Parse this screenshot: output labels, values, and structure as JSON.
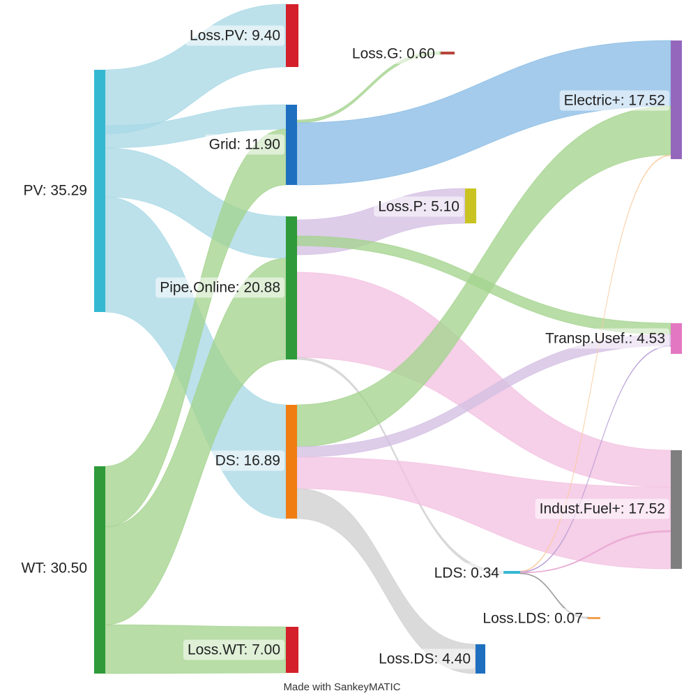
{
  "nodes": [
    {
      "id": "pv",
      "label": "PV: 35.29",
      "color": "#34b8d2"
    },
    {
      "id": "wt",
      "label": "WT: 30.50",
      "color": "#2e9a3a"
    },
    {
      "id": "losspv",
      "label": "Loss.PV: 9.40",
      "color": "#d3202a"
    },
    {
      "id": "grid",
      "label": "Grid: 11.90",
      "color": "#1f6fc0"
    },
    {
      "id": "pipe",
      "label": "Pipe.Online: 20.88",
      "color": "#2e9a3a"
    },
    {
      "id": "ds",
      "label": "DS: 16.89",
      "color": "#f07d12"
    },
    {
      "id": "losswt",
      "label": "Loss.WT: 7.00",
      "color": "#d3202a"
    },
    {
      "id": "lossg",
      "label": "Loss.G: 0.60",
      "color": "#b8453c"
    },
    {
      "id": "lossp",
      "label": "Loss.P: 5.10",
      "color": "#c9c421"
    },
    {
      "id": "lds",
      "label": "LDS: 0.34",
      "color": "#34b8d2"
    },
    {
      "id": "losslds",
      "label": "Loss.LDS: 0.07",
      "color": "#f0a050"
    },
    {
      "id": "lossds",
      "label": "Loss.DS: 4.40",
      "color": "#1f6fc0"
    },
    {
      "id": "electric",
      "label": "Electric+: 17.52",
      "color": "#9467bd"
    },
    {
      "id": "transp",
      "label": "Transp.Usef.: 4.53",
      "color": "#e377c2"
    },
    {
      "id": "indust",
      "label": "Indust.Fuel+: 17.52",
      "color": "#7f7f7f"
    }
  ],
  "flows": [
    {
      "from": "PV",
      "to": "Loss.PV",
      "value": 9.4,
      "color": "#a9d9e6"
    },
    {
      "from": "PV",
      "to": "Grid",
      "color": "#a9d9e6"
    },
    {
      "from": "PV",
      "to": "Pipe.Online",
      "color": "#a9d9e6"
    },
    {
      "from": "PV",
      "to": "DS",
      "color": "#a9d9e6"
    },
    {
      "from": "WT",
      "to": "Grid",
      "color": "#a4d38e"
    },
    {
      "from": "WT",
      "to": "Pipe.Online",
      "color": "#a4d38e"
    },
    {
      "from": "WT",
      "to": "DS",
      "color": "#a4d38e"
    },
    {
      "from": "WT",
      "to": "Loss.WT",
      "value": 7.0,
      "color": "#a4d38e"
    },
    {
      "from": "Grid",
      "to": "Loss.G",
      "value": 0.6,
      "color": "#8bbde6"
    },
    {
      "from": "Grid",
      "to": "Electric+",
      "color": "#d4bfe3"
    },
    {
      "from": "Pipe.Online",
      "to": "Loss.P",
      "value": 5.1,
      "color": "#a4d38e"
    },
    {
      "from": "Pipe.Online",
      "to": "Transp.Usef.",
      "color": "#f3c2e1"
    },
    {
      "from": "Pipe.Online",
      "to": "Indust.Fuel+",
      "color": "#d0d0d0"
    },
    {
      "from": "Pipe.Online",
      "to": "LDS",
      "color": "#a4d38e"
    },
    {
      "from": "DS",
      "to": "Electric+",
      "color": "#d4bfe3"
    },
    {
      "from": "DS",
      "to": "Transp.Usef.",
      "color": "#f3c2e1"
    },
    {
      "from": "DS",
      "to": "Indust.Fuel+",
      "color": "#d0d0d0"
    },
    {
      "from": "DS",
      "to": "Loss.DS",
      "value": 4.4,
      "color": "#fbcb9d"
    },
    {
      "from": "LDS",
      "to": "Electric+",
      "color": "#b89fd6"
    },
    {
      "from": "LDS",
      "to": "Transp.Usef.",
      "color": "#e9a6d3"
    },
    {
      "from": "LDS",
      "to": "Indust.Fuel+",
      "color": "#9a9a9a"
    },
    {
      "from": "LDS",
      "to": "Loss.LDS",
      "value": 0.07,
      "color": "#f5b46a"
    }
  ],
  "credit": "Made with SankeyMATIC"
}
